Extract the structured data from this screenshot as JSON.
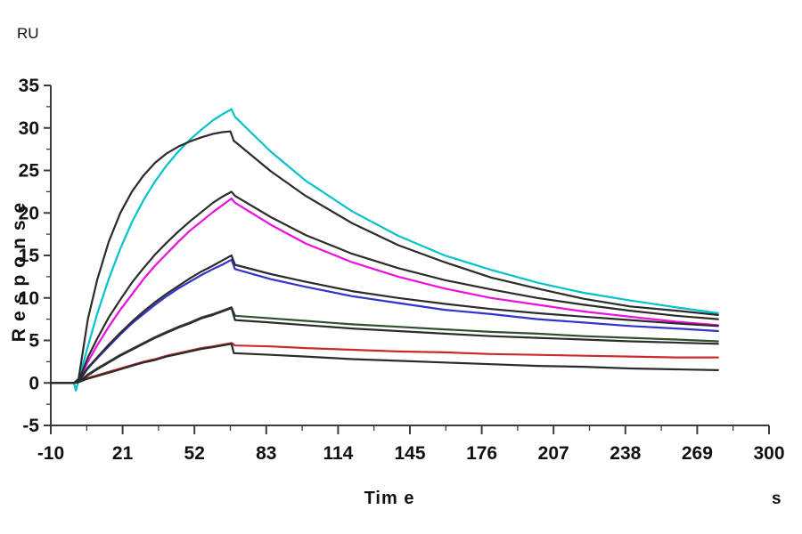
{
  "labels": {
    "response_unit": "RU",
    "y_axis_title": "Response",
    "x_axis_title": "Tim e",
    "x_axis_unit": "s"
  },
  "colors": {
    "background": "#FFFFFF",
    "axis": "#3C3C3C",
    "text": "#111111",
    "fit_line": "#2B2B2B",
    "cyan_series": "#00C2CB",
    "magenta_series": "#EE0EE0",
    "blue_series": "#3333CC",
    "green_series": "#2F4F2F",
    "red_series": "#CC2A2A"
  },
  "chart_data": {
    "type": "line",
    "title": "",
    "xlabel": "Tim e",
    "x_unit": "s",
    "ylabel": "Response",
    "y_unit": "RU",
    "xlim": [
      -10,
      300
    ],
    "ylim": [
      -5,
      35
    ],
    "x_ticks": [
      -10,
      21,
      52,
      83,
      114,
      145,
      176,
      207,
      238,
      269,
      300
    ],
    "y_ticks": [
      -5,
      0,
      5,
      10,
      15,
      20,
      25,
      30,
      35
    ],
    "grid": false,
    "legend": "none",
    "description": "Surface plasmon resonance sensorgram: association phase ~0-68 s, dissociation ~68-278 s; five analyte concentrations, colored measured curves with dark fitted curves",
    "series": [
      {
        "name": "cyan-data",
        "role": "data",
        "color": "#00C2CB",
        "peak_ru": 32.2,
        "points": [
          [
            -10,
            0
          ],
          [
            -2,
            0
          ],
          [
            0,
            0
          ],
          [
            0.8,
            -0.9
          ],
          [
            2,
            0.3
          ],
          [
            6,
            4.3
          ],
          [
            10,
            8.1
          ],
          [
            15,
            12.2
          ],
          [
            20,
            15.8
          ],
          [
            25,
            18.9
          ],
          [
            30,
            21.5
          ],
          [
            35,
            23.7
          ],
          [
            40,
            25.6
          ],
          [
            45,
            27.2
          ],
          [
            50,
            28.6
          ],
          [
            55,
            29.8
          ],
          [
            60,
            30.9
          ],
          [
            64,
            31.6
          ],
          [
            68,
            32.2
          ],
          [
            69.5,
            31.3
          ],
          [
            85,
            27.2
          ],
          [
            100,
            23.8
          ],
          [
            120,
            20.2
          ],
          [
            140,
            17.3
          ],
          [
            160,
            15.0
          ],
          [
            180,
            13.3
          ],
          [
            200,
            11.8
          ],
          [
            220,
            10.6
          ],
          [
            240,
            9.7
          ],
          [
            260,
            8.9
          ],
          [
            278,
            8.2
          ]
        ]
      },
      {
        "name": "magenta-data",
        "role": "data",
        "color": "#EE0EE0",
        "peak_ru": 21.7,
        "points": [
          [
            -10,
            0
          ],
          [
            0,
            0
          ],
          [
            2,
            0.1
          ],
          [
            6,
            2.5
          ],
          [
            10,
            4.4
          ],
          [
            15,
            6.6
          ],
          [
            20,
            8.6
          ],
          [
            25,
            10.4
          ],
          [
            30,
            12.2
          ],
          [
            35,
            13.8
          ],
          [
            40,
            15.2
          ],
          [
            45,
            16.6
          ],
          [
            50,
            17.9
          ],
          [
            55,
            19.0
          ],
          [
            60,
            20.1
          ],
          [
            64,
            20.9
          ],
          [
            68,
            21.7
          ],
          [
            69.5,
            21.2
          ],
          [
            85,
            18.6
          ],
          [
            100,
            16.4
          ],
          [
            120,
            14.2
          ],
          [
            140,
            12.5
          ],
          [
            160,
            11.1
          ],
          [
            180,
            10.0
          ],
          [
            200,
            9.2
          ],
          [
            220,
            8.4
          ],
          [
            240,
            7.8
          ],
          [
            260,
            7.2
          ],
          [
            278,
            6.8
          ]
        ]
      },
      {
        "name": "blue-data",
        "role": "data",
        "color": "#3333CC",
        "peak_ru": 14.5,
        "points": [
          [
            -10,
            0
          ],
          [
            0,
            0
          ],
          [
            2,
            0.1
          ],
          [
            6,
            1.7
          ],
          [
            10,
            2.9
          ],
          [
            15,
            4.3
          ],
          [
            20,
            5.7
          ],
          [
            25,
            7.0
          ],
          [
            30,
            8.1
          ],
          [
            35,
            9.2
          ],
          [
            40,
            10.2
          ],
          [
            45,
            11.1
          ],
          [
            50,
            11.9
          ],
          [
            55,
            12.7
          ],
          [
            60,
            13.4
          ],
          [
            64,
            13.9
          ],
          [
            68,
            14.5
          ],
          [
            69.5,
            13.4
          ],
          [
            85,
            12.2
          ],
          [
            100,
            11.3
          ],
          [
            120,
            10.2
          ],
          [
            140,
            9.4
          ],
          [
            160,
            8.6
          ],
          [
            180,
            8.1
          ],
          [
            200,
            7.5
          ],
          [
            220,
            7.1
          ],
          [
            240,
            6.7
          ],
          [
            260,
            6.4
          ],
          [
            278,
            6.1
          ]
        ]
      },
      {
        "name": "green-data",
        "role": "data",
        "color": "#2F4F2F",
        "peak_ru": 8.9,
        "points": [
          [
            -10,
            0
          ],
          [
            0,
            0
          ],
          [
            2,
            0.1
          ],
          [
            6,
            1.0
          ],
          [
            10,
            1.7
          ],
          [
            15,
            2.5
          ],
          [
            20,
            3.3
          ],
          [
            25,
            4.0
          ],
          [
            30,
            4.7
          ],
          [
            35,
            5.4
          ],
          [
            40,
            6.0
          ],
          [
            45,
            6.6
          ],
          [
            50,
            7.1
          ],
          [
            55,
            7.7
          ],
          [
            60,
            8.1
          ],
          [
            64,
            8.5
          ],
          [
            68,
            8.9
          ],
          [
            69.5,
            7.9
          ],
          [
            85,
            7.6
          ],
          [
            100,
            7.3
          ],
          [
            120,
            6.9
          ],
          [
            140,
            6.6
          ],
          [
            160,
            6.3
          ],
          [
            180,
            6.0
          ],
          [
            200,
            5.8
          ],
          [
            220,
            5.5
          ],
          [
            240,
            5.3
          ],
          [
            260,
            5.1
          ],
          [
            278,
            4.9
          ]
        ]
      },
      {
        "name": "red-data",
        "role": "data",
        "color": "#CC2A2A",
        "peak_ru": 4.7,
        "points": [
          [
            -10,
            0
          ],
          [
            0,
            0
          ],
          [
            2,
            0.1
          ],
          [
            6,
            0.6
          ],
          [
            10,
            0.9
          ],
          [
            15,
            1.3
          ],
          [
            20,
            1.7
          ],
          [
            25,
            2.1
          ],
          [
            30,
            2.5
          ],
          [
            35,
            2.8
          ],
          [
            40,
            3.2
          ],
          [
            45,
            3.5
          ],
          [
            50,
            3.8
          ],
          [
            55,
            4.1
          ],
          [
            60,
            4.3
          ],
          [
            64,
            4.5
          ],
          [
            68,
            4.7
          ],
          [
            69.5,
            4.4
          ],
          [
            85,
            4.3
          ],
          [
            100,
            4.1
          ],
          [
            120,
            3.9
          ],
          [
            140,
            3.7
          ],
          [
            160,
            3.6
          ],
          [
            180,
            3.4
          ],
          [
            200,
            3.3
          ],
          [
            220,
            3.2
          ],
          [
            240,
            3.1
          ],
          [
            260,
            3.0
          ],
          [
            278,
            3.0
          ]
        ]
      },
      {
        "name": "cyan-fit",
        "role": "fit",
        "color": "#2B2B2B",
        "peak_ru": 29.6,
        "points": [
          [
            -10,
            0
          ],
          [
            0,
            0
          ],
          [
            2,
            0.5
          ],
          [
            6,
            7.5
          ],
          [
            10,
            12.1
          ],
          [
            15,
            16.6
          ],
          [
            20,
            20.0
          ],
          [
            25,
            22.5
          ],
          [
            30,
            24.4
          ],
          [
            35,
            25.9
          ],
          [
            40,
            27.0
          ],
          [
            45,
            27.8
          ],
          [
            50,
            28.4
          ],
          [
            55,
            28.9
          ],
          [
            60,
            29.3
          ],
          [
            64,
            29.5
          ],
          [
            67.5,
            29.6
          ],
          [
            69,
            28.5
          ],
          [
            85,
            24.9
          ],
          [
            100,
            22.0
          ],
          [
            120,
            18.8
          ],
          [
            140,
            16.2
          ],
          [
            160,
            14.2
          ],
          [
            180,
            12.4
          ],
          [
            200,
            11.1
          ],
          [
            220,
            9.9
          ],
          [
            240,
            9.0
          ],
          [
            260,
            8.5
          ],
          [
            278,
            8.0
          ]
        ]
      },
      {
        "name": "magenta-fit",
        "role": "fit",
        "color": "#2B2B2B",
        "peak_ru": 22.5,
        "points": [
          [
            -10,
            0
          ],
          [
            0,
            0
          ],
          [
            2,
            0.2
          ],
          [
            6,
            3.0
          ],
          [
            10,
            5.2
          ],
          [
            15,
            7.7
          ],
          [
            20,
            9.8
          ],
          [
            25,
            11.8
          ],
          [
            30,
            13.5
          ],
          [
            35,
            15.1
          ],
          [
            40,
            16.5
          ],
          [
            45,
            17.8
          ],
          [
            50,
            19.0
          ],
          [
            55,
            20.1
          ],
          [
            60,
            21.2
          ],
          [
            64,
            21.9
          ],
          [
            68,
            22.5
          ],
          [
            69.5,
            22.0
          ],
          [
            85,
            19.5
          ],
          [
            100,
            17.4
          ],
          [
            120,
            15.2
          ],
          [
            140,
            13.5
          ],
          [
            160,
            12.1
          ],
          [
            180,
            11.0
          ],
          [
            200,
            10.0
          ],
          [
            220,
            9.2
          ],
          [
            240,
            8.5
          ],
          [
            260,
            7.9
          ],
          [
            278,
            7.5
          ]
        ]
      },
      {
        "name": "blue-fit",
        "role": "fit",
        "color": "#2B2B2B",
        "peak_ru": 15.0,
        "points": [
          [
            -10,
            0
          ],
          [
            0,
            0
          ],
          [
            2,
            0.2
          ],
          [
            6,
            1.8
          ],
          [
            10,
            3.0
          ],
          [
            15,
            4.5
          ],
          [
            20,
            5.9
          ],
          [
            25,
            7.2
          ],
          [
            30,
            8.4
          ],
          [
            35,
            9.5
          ],
          [
            40,
            10.5
          ],
          [
            45,
            11.4
          ],
          [
            50,
            12.3
          ],
          [
            55,
            13.1
          ],
          [
            60,
            13.8
          ],
          [
            64,
            14.4
          ],
          [
            68,
            15.0
          ],
          [
            69.5,
            13.9
          ],
          [
            85,
            12.8
          ],
          [
            100,
            11.9
          ],
          [
            120,
            10.8
          ],
          [
            140,
            10.0
          ],
          [
            160,
            9.3
          ],
          [
            180,
            8.7
          ],
          [
            200,
            8.2
          ],
          [
            220,
            7.8
          ],
          [
            240,
            7.4
          ],
          [
            260,
            7.0
          ],
          [
            278,
            6.7
          ]
        ]
      },
      {
        "name": "green-fit",
        "role": "fit",
        "color": "#2B2B2B",
        "peak_ru": 8.8,
        "points": [
          [
            -10,
            0
          ],
          [
            0,
            0
          ],
          [
            2,
            0.1
          ],
          [
            6,
            0.9
          ],
          [
            10,
            1.6
          ],
          [
            15,
            2.4
          ],
          [
            20,
            3.2
          ],
          [
            25,
            3.9
          ],
          [
            30,
            4.6
          ],
          [
            35,
            5.3
          ],
          [
            40,
            5.9
          ],
          [
            45,
            6.5
          ],
          [
            50,
            7.0
          ],
          [
            55,
            7.6
          ],
          [
            60,
            8.0
          ],
          [
            64,
            8.4
          ],
          [
            68,
            8.8
          ],
          [
            69.5,
            7.4
          ],
          [
            85,
            7.1
          ],
          [
            100,
            6.8
          ],
          [
            120,
            6.4
          ],
          [
            140,
            6.1
          ],
          [
            160,
            5.8
          ],
          [
            180,
            5.5
          ],
          [
            200,
            5.3
          ],
          [
            220,
            5.1
          ],
          [
            240,
            4.9
          ],
          [
            278,
            4.6
          ]
        ]
      },
      {
        "name": "red-fit",
        "role": "fit",
        "color": "#2B2B2B",
        "peak_ru": 4.6,
        "points": [
          [
            -10,
            0
          ],
          [
            0,
            0
          ],
          [
            2,
            0.1
          ],
          [
            6,
            0.5
          ],
          [
            10,
            0.8
          ],
          [
            15,
            1.2
          ],
          [
            20,
            1.6
          ],
          [
            25,
            2.0
          ],
          [
            30,
            2.4
          ],
          [
            35,
            2.7
          ],
          [
            40,
            3.1
          ],
          [
            45,
            3.4
          ],
          [
            50,
            3.7
          ],
          [
            55,
            4.0
          ],
          [
            60,
            4.2
          ],
          [
            64,
            4.4
          ],
          [
            68,
            4.6
          ],
          [
            69,
            3.5
          ],
          [
            85,
            3.3
          ],
          [
            100,
            3.1
          ],
          [
            120,
            2.8
          ],
          [
            140,
            2.6
          ],
          [
            160,
            2.4
          ],
          [
            180,
            2.2
          ],
          [
            200,
            2.0
          ],
          [
            220,
            1.9
          ],
          [
            240,
            1.7
          ],
          [
            260,
            1.6
          ],
          [
            278,
            1.5
          ]
        ]
      }
    ]
  }
}
